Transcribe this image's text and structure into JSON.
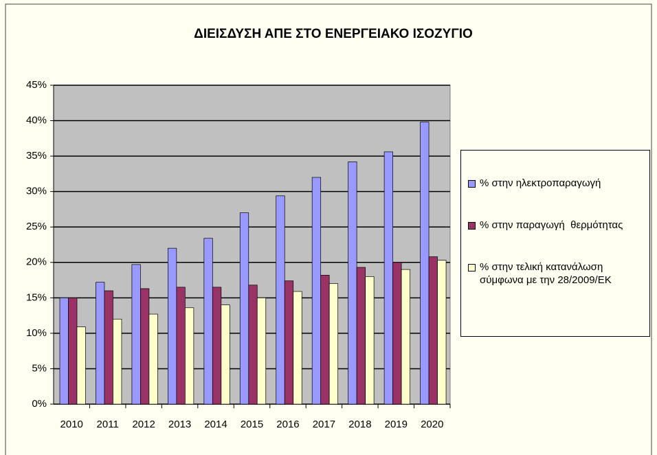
{
  "chart_data": {
    "type": "bar",
    "title": "ΔΙΕΙΣΔΥΣΗ ΑΠΕ ΣΤΟ ΕΝΕΡΓΕΙΑΚΟ ΙΣΟΖΥΓΙΟ",
    "categories": [
      "2010",
      "2011",
      "2012",
      "2013",
      "2014",
      "2015",
      "2016",
      "2017",
      "2018",
      "2019",
      "2020"
    ],
    "series": [
      {
        "name": "% στην ηλεκτροπαραγωγή",
        "color": "#9999ff",
        "values": [
          15,
          17.2,
          19.7,
          22,
          23.4,
          27,
          29.4,
          32,
          34.2,
          35.6,
          39.8
        ]
      },
      {
        "name": "% στην παραγωγή  θερμότητας",
        "color": "#993366",
        "values": [
          15,
          16,
          16.3,
          16.5,
          16.5,
          16.8,
          17.4,
          18.2,
          19.3,
          20,
          20.8
        ]
      },
      {
        "name": "% στην τελική κατανάλωση σύμφωνα με την 28/2009/ΕΚ",
        "color": "#ffffcc",
        "values": [
          10.9,
          12,
          12.7,
          13.6,
          14,
          15,
          15.9,
          17,
          18,
          19,
          20.3
        ]
      }
    ],
    "ylim": [
      0,
      45
    ],
    "yticks": [
      {
        "value": 0,
        "label": "0%"
      },
      {
        "value": 5,
        "label": "5%"
      },
      {
        "value": 10,
        "label": "10%"
      },
      {
        "value": 15,
        "label": "15%"
      },
      {
        "value": 20,
        "label": "20%"
      },
      {
        "value": 25,
        "label": "25%"
      },
      {
        "value": 30,
        "label": "30%"
      },
      {
        "value": 35,
        "label": "35%"
      },
      {
        "value": 40,
        "label": "40%"
      },
      {
        "value": 45,
        "label": "45%"
      }
    ],
    "grid": true,
    "legend": "right"
  }
}
